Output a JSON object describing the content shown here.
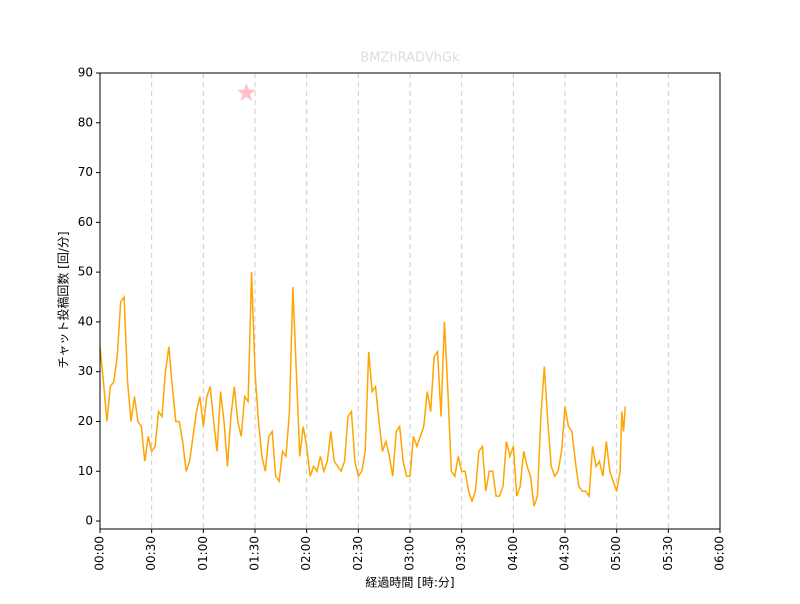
{
  "chart_data": {
    "type": "line",
    "title": "BMZhRADVhGk",
    "xlabel": "経過時間 [時:分]",
    "ylabel": "チャット投稿回数 [回/分]",
    "x": [
      0,
      2,
      4,
      6,
      8,
      10,
      12,
      14,
      16,
      18,
      20,
      22,
      24,
      26,
      28,
      30,
      32,
      34,
      36,
      38,
      40,
      42,
      44,
      46,
      48,
      50,
      52,
      54,
      56,
      58,
      60,
      62,
      64,
      66,
      68,
      70,
      72,
      74,
      76,
      78,
      80,
      82,
      84,
      86,
      88,
      90,
      92,
      94,
      96,
      98,
      100,
      102,
      104,
      106,
      108,
      110,
      112,
      114,
      116,
      118,
      120,
      122,
      124,
      126,
      128,
      130,
      132,
      134,
      136,
      138,
      140,
      142,
      144,
      146,
      148,
      150,
      152,
      154,
      156,
      158,
      160,
      162,
      164,
      166,
      168,
      170,
      172,
      174,
      176,
      178,
      180,
      182,
      184,
      186,
      188,
      190,
      192,
      194,
      196,
      198,
      200,
      202,
      204,
      206,
      208,
      210,
      212,
      214,
      216,
      218,
      220,
      222,
      224,
      226,
      228,
      230,
      232,
      234,
      236,
      238,
      240,
      242,
      244,
      246,
      248,
      250,
      252,
      254,
      256,
      258,
      260,
      262,
      264,
      266,
      268,
      270,
      272,
      274,
      276,
      278,
      280,
      282,
      284,
      286,
      288,
      290,
      292,
      294,
      296,
      298,
      300,
      302,
      303,
      304,
      305
    ],
    "values": [
      35,
      28,
      20,
      27,
      28,
      33,
      44,
      45,
      28,
      20,
      25,
      20,
      19,
      12,
      17,
      14,
      15,
      22,
      21,
      30,
      35,
      27,
      20,
      20,
      16,
      10,
      12,
      17,
      22,
      25,
      19,
      25,
      27,
      20,
      14,
      26,
      20,
      11,
      21,
      27,
      20,
      17,
      25,
      24,
      50,
      30,
      20,
      13,
      10,
      17,
      18,
      9,
      8,
      14,
      13,
      22,
      47,
      30,
      13,
      19,
      15,
      9,
      11,
      10,
      13,
      10,
      12,
      18,
      12,
      11,
      10,
      12,
      21,
      22,
      12,
      9,
      10,
      14,
      34,
      26,
      27,
      20,
      14,
      16,
      13,
      9,
      18,
      19,
      12,
      9,
      9,
      17,
      15,
      17,
      19,
      26,
      22,
      33,
      34,
      21,
      40,
      26,
      10,
      9,
      13,
      10,
      10,
      6,
      4,
      6,
      14,
      15,
      6,
      10,
      10,
      5,
      5,
      7,
      16,
      13,
      15,
      5,
      7,
      14,
      11,
      9,
      3,
      5,
      21,
      31,
      20,
      11,
      9,
      10,
      14,
      23,
      19,
      18,
      12,
      7,
      6,
      6,
      5,
      15,
      11,
      12,
      9,
      16,
      10,
      8,
      6,
      10,
      22,
      18,
      23
    ],
    "color": "#ffa500",
    "xlim": [
      0,
      360
    ],
    "xticks": [
      {
        "value": 0,
        "label": "00:00"
      },
      {
        "value": 30,
        "label": "00:30"
      },
      {
        "value": 60,
        "label": "01:00"
      },
      {
        "value": 90,
        "label": "01:30"
      },
      {
        "value": 120,
        "label": "02:00"
      },
      {
        "value": 150,
        "label": "02:30"
      },
      {
        "value": 180,
        "label": "03:00"
      },
      {
        "value": 210,
        "label": "03:30"
      },
      {
        "value": 240,
        "label": "04:00"
      },
      {
        "value": 270,
        "label": "04:30"
      },
      {
        "value": 300,
        "label": "05:00"
      },
      {
        "value": 330,
        "label": "05:30"
      },
      {
        "value": 360,
        "label": "06:00"
      }
    ],
    "ylim": [
      -1.6,
      90
    ],
    "yticks": [
      0,
      10,
      20,
      30,
      40,
      50,
      60,
      70,
      80,
      90
    ],
    "grid": "x",
    "marker": {
      "x": 85,
      "y": 86,
      "color": "#ffc0cb"
    }
  }
}
